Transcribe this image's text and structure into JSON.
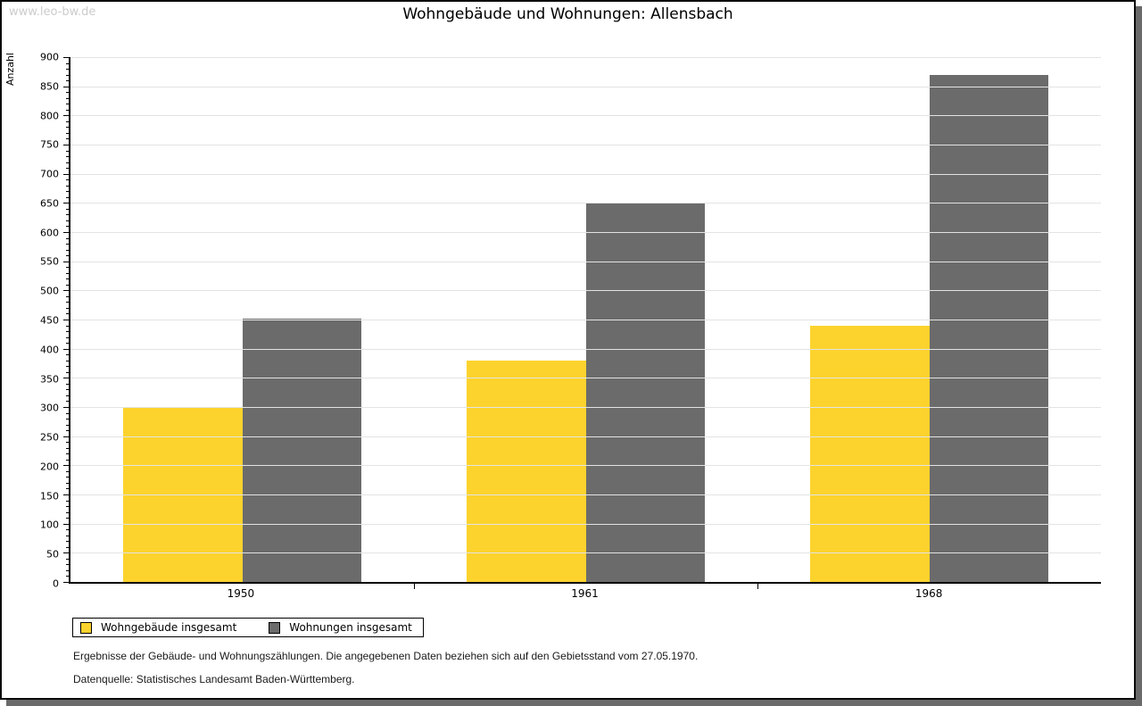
{
  "watermark": "www.leo-bw.de",
  "title": "Wohngebäude und Wohnungen: Allensbach",
  "chart_data": {
    "type": "bar",
    "title": "Wohngebäude und Wohnungen: Allensbach",
    "ylabel": "Anzahl",
    "xlabel": "",
    "categories": [
      "1950",
      "1961",
      "1968"
    ],
    "series": [
      {
        "name": "Wohngebäude insgesamt",
        "color": "#fcd32d",
        "values": [
          300,
          380,
          440
        ]
      },
      {
        "name": "Wohnungen insgesamt",
        "color": "#6b6b6b",
        "values": [
          452,
          651,
          870
        ]
      }
    ],
    "ylim": [
      0,
      900
    ],
    "ytick_step": 50,
    "minor_tick_step": 10,
    "grid": true,
    "legend_position": "bottom-left"
  },
  "footer": {
    "line1": "Ergebnisse der Gebäude- und Wohnungszählungen. Die angegebenen Daten beziehen sich auf den Gebietsstand vom 27.05.1970.",
    "line2": "Datenquelle: Statistisches Landesamt Baden-Württemberg."
  }
}
